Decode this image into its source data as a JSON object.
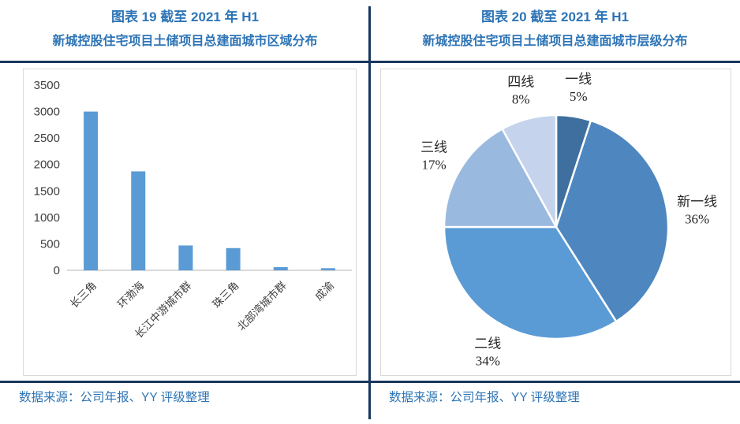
{
  "page": {
    "background_color": "#ffffff",
    "divider_color": "#17375E",
    "rule_color": "#17375E",
    "frame_border_color": "#D9D9D9",
    "title_color": "#2E75B6",
    "caption_color": "#2E75B6"
  },
  "left_panel": {
    "title_line1": "图表 19 截至 2021 年 H1",
    "title_line2": "新城控股住宅项目土储项目总建面城市区域分布",
    "caption": "数据来源：公司年报、YY 评级整理"
  },
  "right_panel": {
    "title_line1": "图表 20 截至 2021 年 H1",
    "title_line2": "新城控股住宅项目土储项目总建面城市层级分布",
    "caption": "数据来源：公司年报、YY 评级整理"
  },
  "chart_data": [
    {
      "type": "bar",
      "title": "新城控股住宅项目土储项目总建面城市区域分布",
      "categories": [
        "长三角",
        "环渤海",
        "长江中游城市群",
        "珠三角",
        "北部湾城市群",
        "成渝"
      ],
      "values": [
        3000,
        1870,
        470,
        420,
        60,
        40
      ],
      "xlabel": "",
      "ylabel": "",
      "ylim": [
        0,
        3500
      ],
      "yticks": [
        0,
        500,
        1000,
        1500,
        2000,
        2500,
        3000,
        3500
      ],
      "grid": false,
      "legend": "none",
      "bar_color": "#5B9BD5",
      "axis_color": "#D9D9D9",
      "tick_label_color": "#404040",
      "category_label_rotation_deg": 45
    },
    {
      "type": "pie",
      "title": "新城控股住宅项目土储项目总建面城市层级分布",
      "start_angle_deg": 0,
      "direction": "clockwise",
      "label_format": "{label} {pct}%",
      "label_color": "#262626",
      "slice_gap_color": "#ffffff",
      "slices": [
        {
          "label": "一线",
          "pct": 5,
          "color": "#3E6F9E"
        },
        {
          "label": "新一线",
          "pct": 36,
          "color": "#4E86C0"
        },
        {
          "label": "二线",
          "pct": 34,
          "color": "#5B9BD5"
        },
        {
          "label": "三线",
          "pct": 17,
          "color": "#9AB9DF"
        },
        {
          "label": "四线",
          "pct": 8,
          "color": "#C5D4EC"
        }
      ]
    }
  ]
}
